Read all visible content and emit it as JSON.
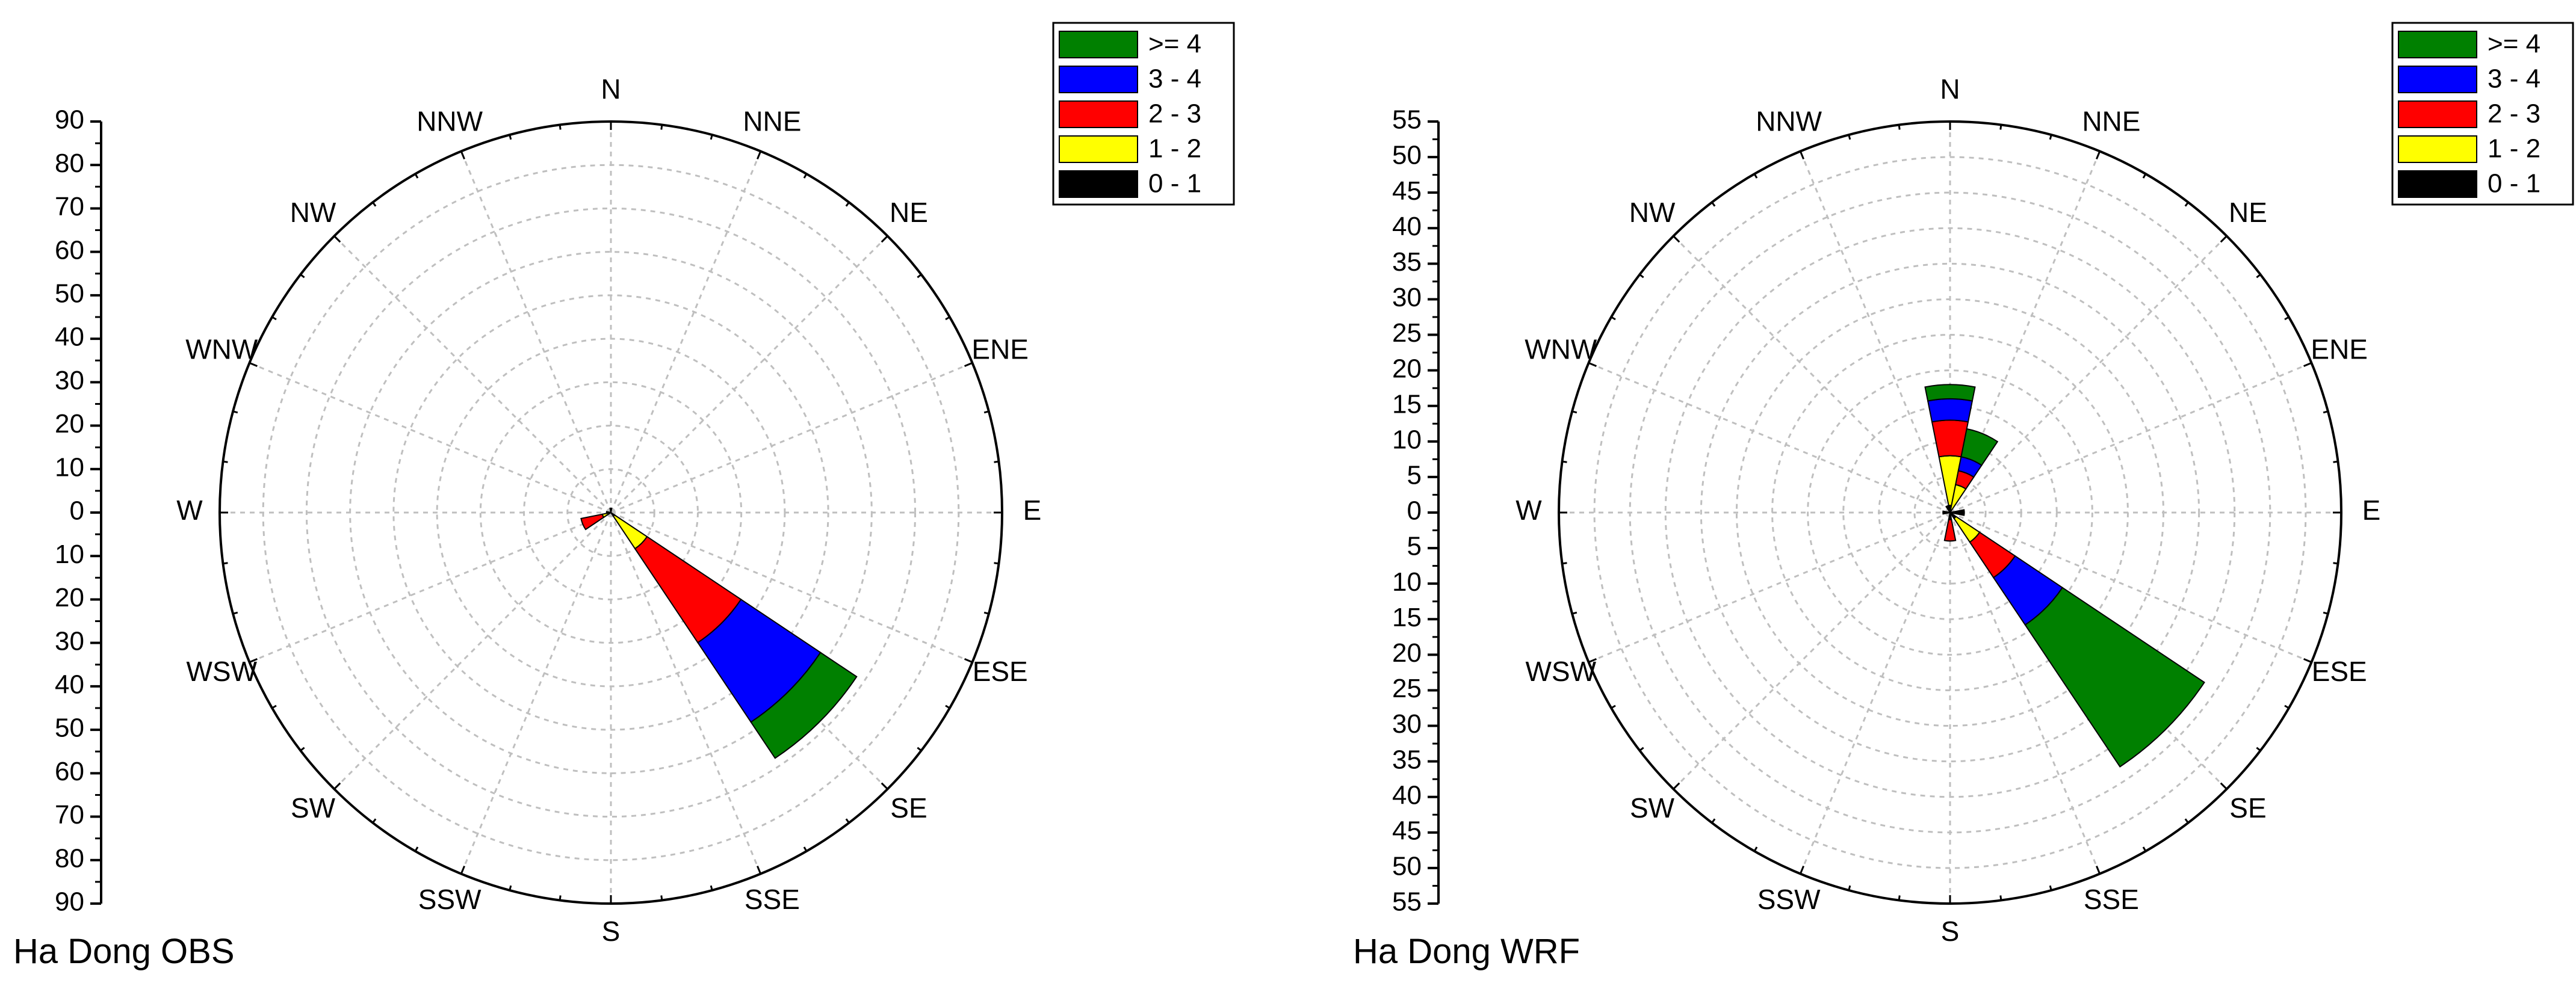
{
  "chart_data": [
    {
      "type": "wind_rose",
      "title": "Ha Dong OBS",
      "directions": [
        "N",
        "NNE",
        "NE",
        "ENE",
        "E",
        "ESE",
        "SE",
        "SSE",
        "S",
        "SSW",
        "SW",
        "WSW",
        "W",
        "WNW",
        "NW",
        "NNW"
      ],
      "bins": [
        {
          "label": "0 - 1",
          "color": "#000000"
        },
        {
          "label": "1 - 2",
          "color": "#ffff00"
        },
        {
          "label": "2 - 3",
          "color": "#ff0000"
        },
        {
          "label": "3 - 4",
          "color": "#0000ff"
        },
        {
          "label": ">= 4",
          "color": "#008000"
        }
      ],
      "legend_order": [
        ">= 4",
        "3 - 4",
        "2 - 3",
        "1 - 2",
        "0 - 1"
      ],
      "radial_axis": {
        "max": 90,
        "step": 10,
        "tick_labels": [
          "90",
          "80",
          "70",
          "60",
          "50",
          "40",
          "30",
          "20",
          "10",
          "0",
          "10",
          "20",
          "30",
          "40",
          "50",
          "60",
          "70",
          "80",
          "90"
        ]
      },
      "grid": true,
      "legend_position": "top-right",
      "sectors": [
        {
          "direction": "N",
          "values": [
            1,
            0,
            0,
            0,
            0
          ]
        },
        {
          "direction": "NNE",
          "values": [
            0,
            0,
            0,
            0,
            0
          ]
        },
        {
          "direction": "NE",
          "values": [
            0,
            0,
            0,
            0,
            0
          ]
        },
        {
          "direction": "ENE",
          "values": [
            0,
            0,
            0,
            0,
            0
          ]
        },
        {
          "direction": "E",
          "values": [
            0,
            0,
            0,
            0,
            0
          ]
        },
        {
          "direction": "ESE",
          "values": [
            0,
            0,
            0,
            0,
            0
          ]
        },
        {
          "direction": "SE",
          "values": [
            1,
            9,
            26,
            22,
            10
          ]
        },
        {
          "direction": "SSE",
          "values": [
            0,
            0,
            0,
            0,
            0
          ]
        },
        {
          "direction": "S",
          "values": [
            0,
            0,
            0,
            0,
            0
          ]
        },
        {
          "direction": "SSW",
          "values": [
            0,
            0,
            0,
            0,
            0
          ]
        },
        {
          "direction": "SW",
          "values": [
            0,
            0,
            0,
            0,
            0
          ]
        },
        {
          "direction": "WSW",
          "values": [
            0,
            2,
            5,
            0,
            0
          ]
        },
        {
          "direction": "W",
          "values": [
            1,
            0,
            0,
            0,
            0
          ]
        },
        {
          "direction": "WNW",
          "values": [
            0,
            0,
            0,
            0,
            0
          ]
        },
        {
          "direction": "NW",
          "values": [
            0,
            0,
            0,
            0,
            0
          ]
        },
        {
          "direction": "NNW",
          "values": [
            0,
            0,
            0,
            0,
            0
          ]
        }
      ]
    },
    {
      "type": "wind_rose",
      "title": "Ha Dong WRF",
      "directions": [
        "N",
        "NNE",
        "NE",
        "ENE",
        "E",
        "ESE",
        "SE",
        "SSE",
        "S",
        "SSW",
        "SW",
        "WSW",
        "W",
        "WNW",
        "NW",
        "NNW"
      ],
      "bins": [
        {
          "label": "0 - 1",
          "color": "#000000"
        },
        {
          "label": "1 - 2",
          "color": "#ffff00"
        },
        {
          "label": "2 - 3",
          "color": "#ff0000"
        },
        {
          "label": "3 - 4",
          "color": "#0000ff"
        },
        {
          "label": ">= 4",
          "color": "#008000"
        }
      ],
      "legend_order": [
        ">= 4",
        "3 - 4",
        "2 - 3",
        "1 - 2",
        "0 - 1"
      ],
      "radial_axis": {
        "max": 55,
        "step": 5,
        "tick_labels": [
          "55",
          "50",
          "45",
          "40",
          "35",
          "30",
          "25",
          "20",
          "15",
          "10",
          "5",
          "0",
          "5",
          "10",
          "15",
          "20",
          "25",
          "30",
          "35",
          "40",
          "45",
          "50",
          "55"
        ]
      },
      "grid": true,
      "legend_position": "top-right",
      "sectors": [
        {
          "direction": "N",
          "values": [
            1,
            7,
            5,
            3,
            2
          ]
        },
        {
          "direction": "NNE",
          "values": [
            0,
            4,
            2,
            2,
            4
          ]
        },
        {
          "direction": "NE",
          "values": [
            0,
            0,
            0,
            0,
            0
          ]
        },
        {
          "direction": "ENE",
          "values": [
            0,
            0,
            0,
            0,
            0
          ]
        },
        {
          "direction": "E",
          "values": [
            2,
            0,
            0,
            0,
            0
          ]
        },
        {
          "direction": "ESE",
          "values": [
            0,
            0,
            0,
            0,
            0
          ]
        },
        {
          "direction": "SE",
          "values": [
            1,
            4,
            6,
            8,
            24
          ]
        },
        {
          "direction": "SSE",
          "values": [
            0,
            0,
            0,
            0,
            0
          ]
        },
        {
          "direction": "S",
          "values": [
            1,
            0,
            3,
            0,
            0
          ]
        },
        {
          "direction": "SSW",
          "values": [
            0,
            0,
            0,
            0,
            0
          ]
        },
        {
          "direction": "SW",
          "values": [
            0,
            0,
            0,
            0,
            0
          ]
        },
        {
          "direction": "WSW",
          "values": [
            0,
            0,
            0,
            0,
            0
          ]
        },
        {
          "direction": "W",
          "values": [
            1,
            0,
            0,
            0,
            0
          ]
        },
        {
          "direction": "WNW",
          "values": [
            0,
            0,
            0,
            0,
            0
          ]
        },
        {
          "direction": "NW",
          "values": [
            0,
            0,
            0,
            0,
            0
          ]
        },
        {
          "direction": "NNW",
          "values": [
            1,
            0,
            0,
            0,
            0
          ]
        }
      ]
    }
  ]
}
